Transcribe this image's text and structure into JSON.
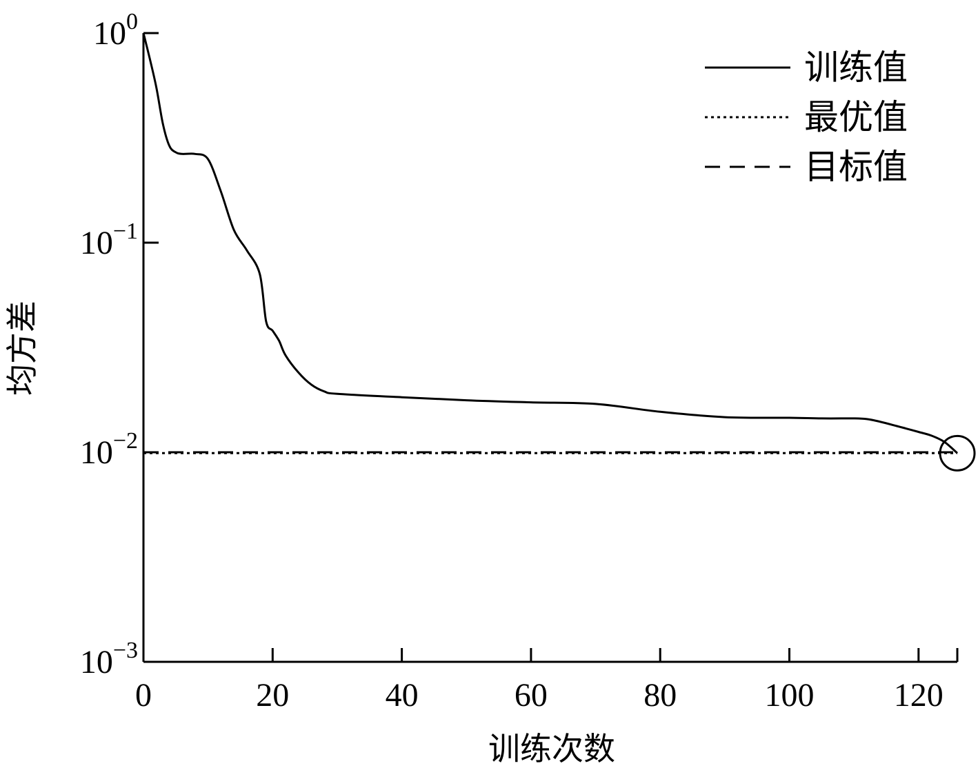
{
  "chart_data": {
    "type": "line",
    "xlabel": "训练次数",
    "ylabel": "均方差",
    "xlim": [
      0,
      126
    ],
    "ylim": [
      0.001,
      1
    ],
    "y_scale": "log",
    "grid": false,
    "legend_position": "top-right",
    "x_ticks": [
      0,
      20,
      40,
      60,
      80,
      100,
      120
    ],
    "y_ticks": [
      {
        "value": 1,
        "base": "10",
        "exp": "0"
      },
      {
        "value": 0.1,
        "base": "10",
        "exp": "−1"
      },
      {
        "value": 0.01,
        "base": "10",
        "exp": "−2"
      },
      {
        "value": 0.001,
        "base": "10",
        "exp": "−3"
      }
    ],
    "series": [
      {
        "name": "训练值",
        "style": "solid",
        "x": [
          0,
          1,
          2,
          3,
          4,
          5,
          6,
          8,
          10,
          12,
          14,
          16,
          18,
          19,
          20,
          21,
          22,
          24,
          26,
          28,
          30,
          40,
          50,
          60,
          70,
          80,
          90,
          100,
          105,
          110,
          112,
          114,
          116,
          118,
          120,
          122,
          124,
          126
        ],
        "y": [
          1.0,
          0.75,
          0.55,
          0.37,
          0.29,
          0.27,
          0.265,
          0.265,
          0.25,
          0.175,
          0.115,
          0.092,
          0.071,
          0.042,
          0.038,
          0.034,
          0.029,
          0.024,
          0.021,
          0.0195,
          0.019,
          0.0183,
          0.0177,
          0.0173,
          0.017,
          0.0156,
          0.0147,
          0.0146,
          0.0145,
          0.0145,
          0.0144,
          0.014,
          0.0135,
          0.013,
          0.0125,
          0.012,
          0.0112,
          0.0099
        ]
      },
      {
        "name": "最优值",
        "style": "dotted",
        "x": [
          0,
          126
        ],
        "y": [
          0.0099,
          0.0099
        ]
      },
      {
        "name": "目标值",
        "style": "dashed",
        "x": [
          0,
          126
        ],
        "y": [
          0.01,
          0.01
        ]
      }
    ],
    "annotations": [
      {
        "type": "circle-marker",
        "x": 126,
        "y": 0.0099
      }
    ]
  }
}
